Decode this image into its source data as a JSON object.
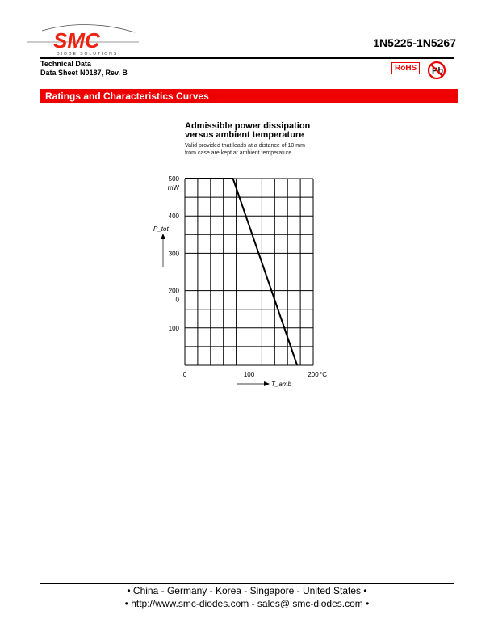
{
  "header": {
    "logo_text": "SMC",
    "logo_tagline": "DIODE SOLUTIONS",
    "part_range": "1N5225-1N5267",
    "doc_line1": "Technical Data",
    "doc_line2": "Data Sheet N0187, Rev. B",
    "rohs_badge": "RoHS",
    "pb_free_badge": "Pb"
  },
  "section_title": "Ratings and Characteristics Curves",
  "chart_data": {
    "type": "line",
    "title": "Admissible power dissipation versus ambient temperature",
    "title_line1": "Admissible power dissipation",
    "title_line2": "versus ambient temperature",
    "subtitle_line1": "Valid provided that leads at a distance of 10 mm",
    "subtitle_line2": "from case are kept at ambient temperature",
    "xlabel": "T_amb",
    "xunit": "°C",
    "ylabel": "P_tot",
    "yunit": "mW",
    "xlim": [
      0,
      200
    ],
    "ylim": [
      0,
      500
    ],
    "x_ticks": [
      "0",
      "100",
      "200"
    ],
    "y_ticks": [
      {
        "v": 500,
        "label": "500"
      },
      {
        "v": 400,
        "label": "400"
      },
      {
        "v": 300,
        "label": "300"
      },
      {
        "v": 200,
        "label": "200"
      },
      {
        "v": 100,
        "label": "100"
      }
    ],
    "y_extra_label": "0",
    "grid": true,
    "series": [
      {
        "x": [
          0,
          75,
          175
        ],
        "y": [
          500,
          500,
          0
        ]
      }
    ]
  },
  "footer": {
    "line1": "• China  -  Germany  -  Korea  -  Singapore  -  United States •",
    "line2": "• http://www.smc-diodes.com  -  sales@ smc-diodes.com •"
  }
}
